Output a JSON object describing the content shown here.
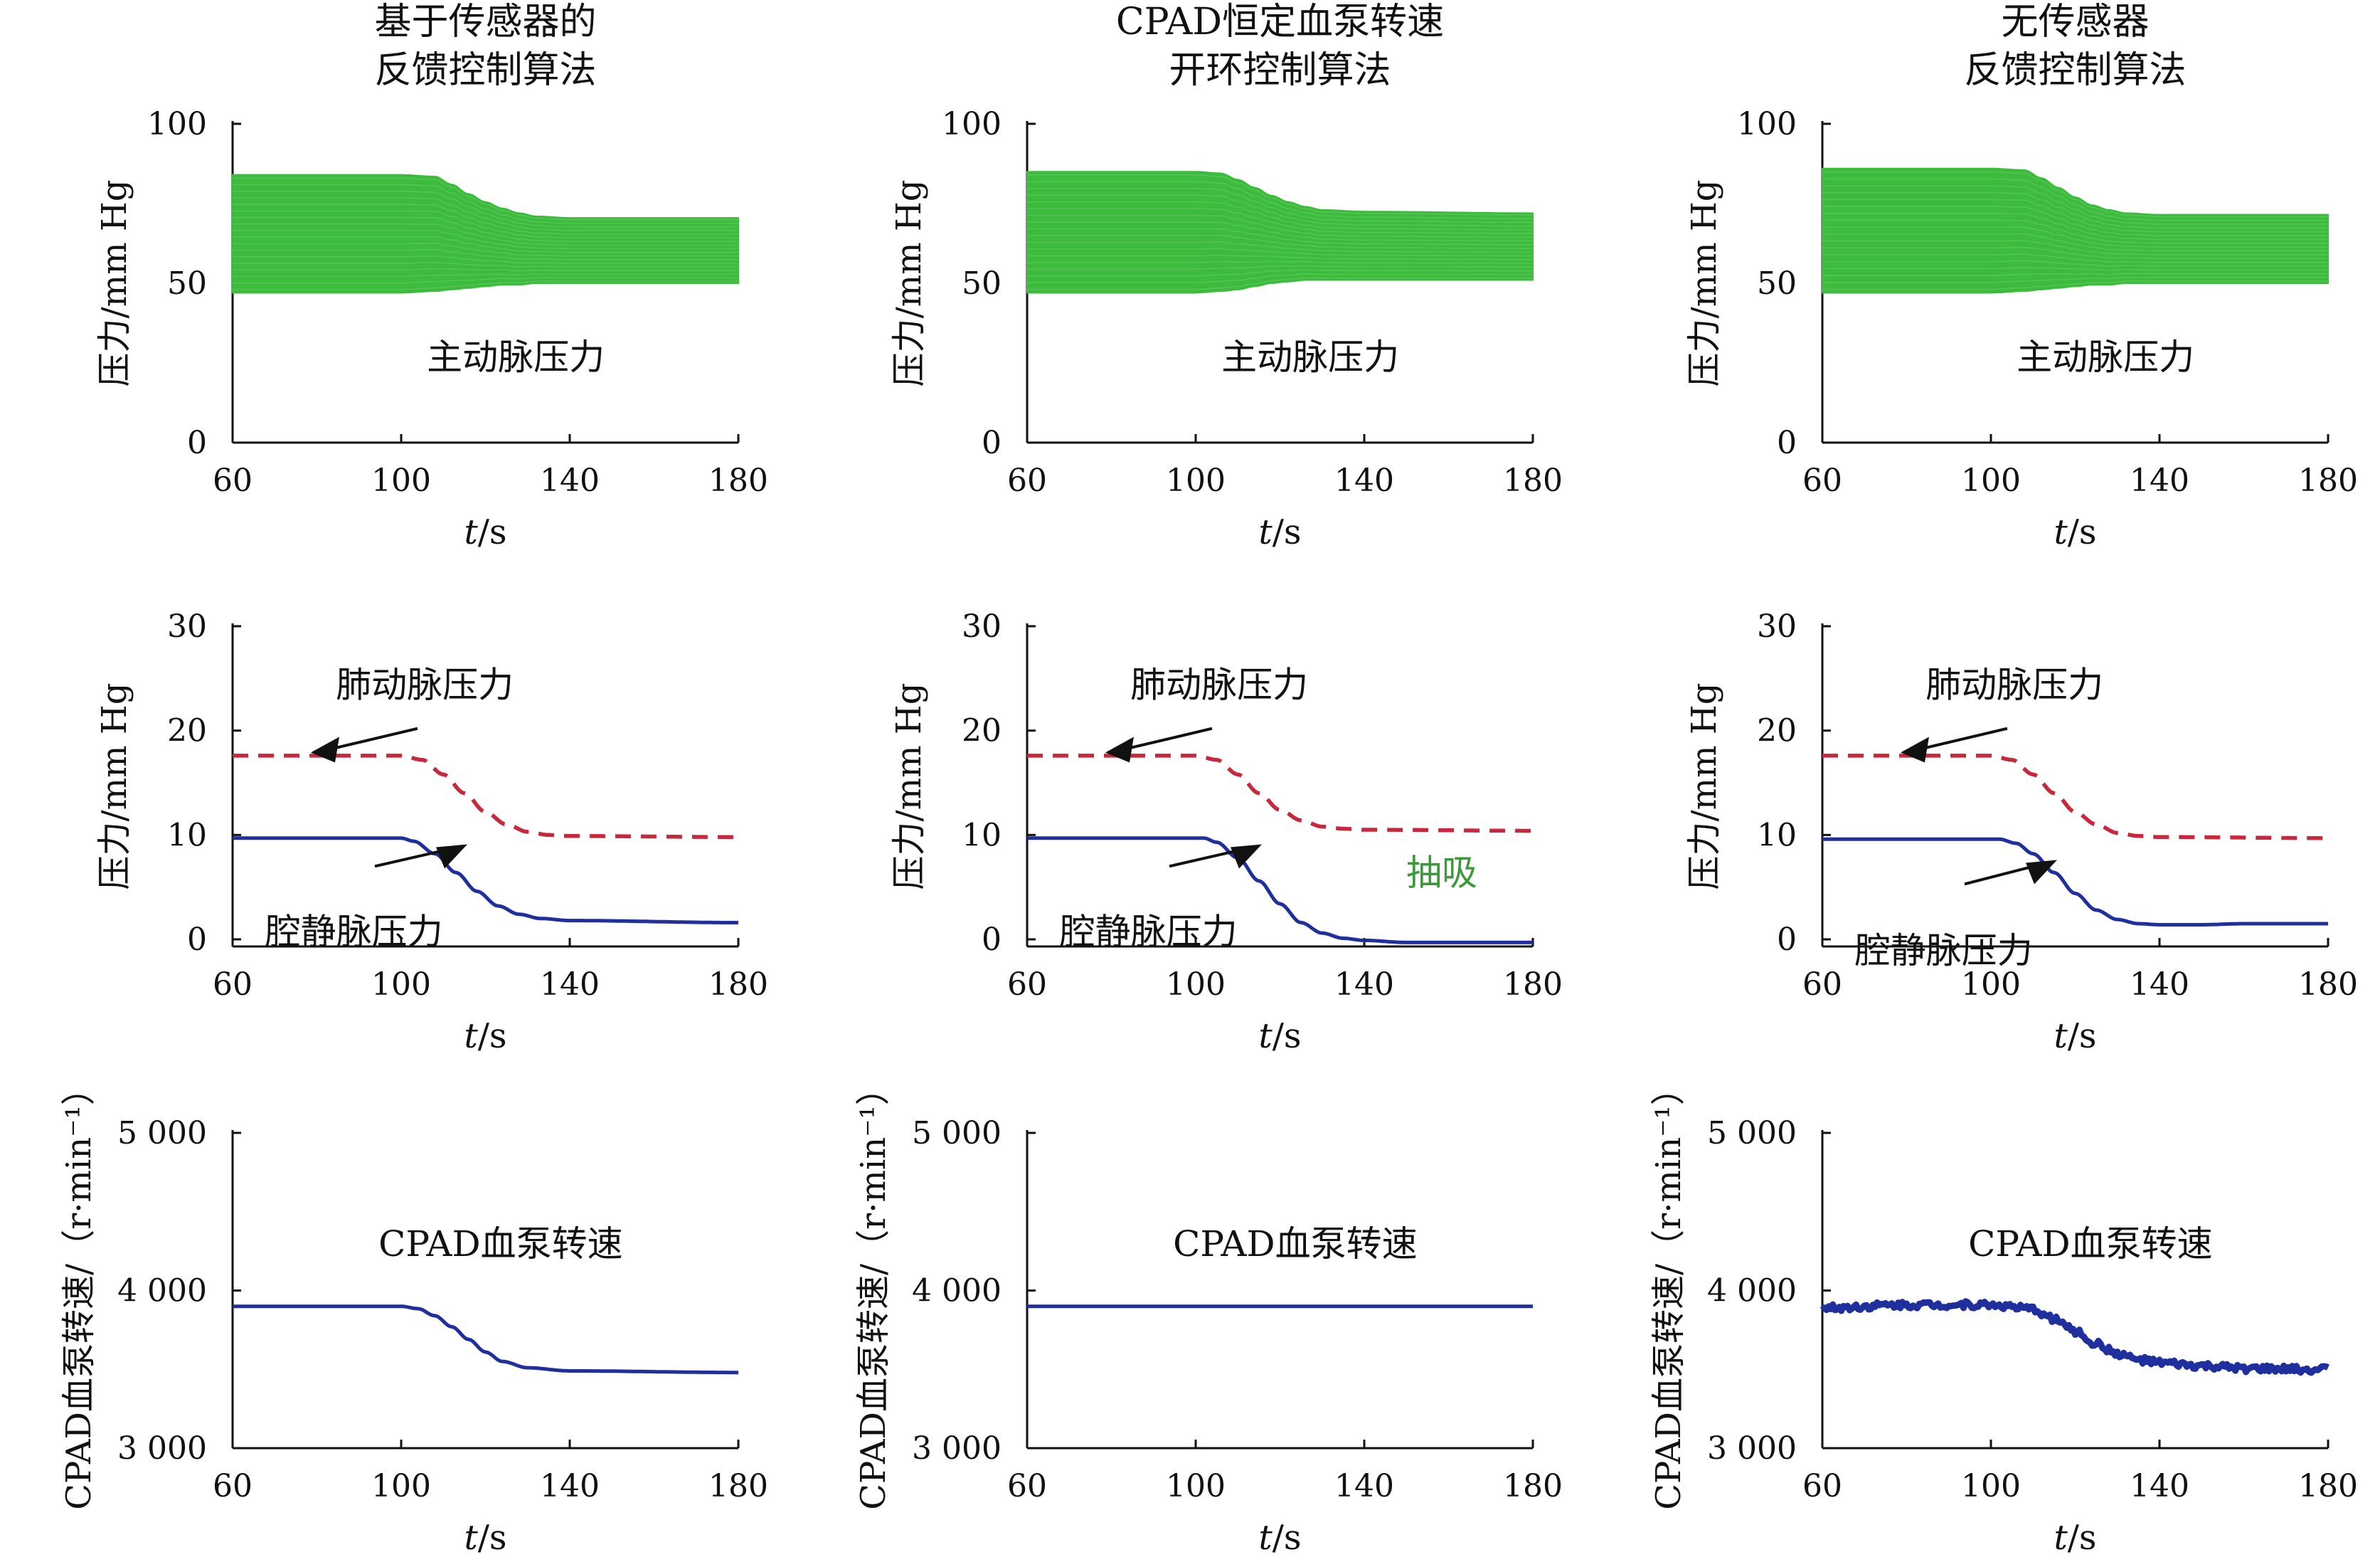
{
  "columns": [
    {
      "title": [
        "基于传感器的",
        "反馈控制算法"
      ]
    },
    {
      "title": [
        "CPAD恒定血泵转速",
        "开环控制算法"
      ]
    },
    {
      "title": [
        "无传感器",
        "反馈控制算法"
      ]
    }
  ],
  "annotations": {
    "aortic": "主动脉压力",
    "pulmonary": "肺动脉压力",
    "vena_cava": "腔静脉压力",
    "suction": "抽吸",
    "pump_speed": "CPAD血泵转速"
  },
  "colors": {
    "aortic_fill": "#3dbb3d",
    "pulmonary_line": "#c8283c",
    "vena_cava_line": "#1f2f9e",
    "speed_line": "#1f2f9e",
    "suction_text": "#3a9a3a",
    "axis": "#111111"
  },
  "chart_data": [
    {
      "type": "area",
      "row": 0,
      "col": 0,
      "xlabel": "t/s",
      "ylabel": "压力/mm Hg",
      "xlim": [
        60,
        180
      ],
      "ylim": [
        0,
        100
      ],
      "xticks": [
        60,
        100,
        140,
        180
      ],
      "xtick_labels": [
        "60",
        "100",
        "140",
        "180"
      ],
      "yticks": [
        0,
        50,
        100
      ],
      "ytick_labels": [
        "0",
        "50",
        "100"
      ],
      "series": [
        {
          "name": "主动脉压力",
          "x": [
            60,
            100,
            108,
            112,
            116,
            120,
            124,
            128,
            132,
            140,
            180
          ],
          "upper": [
            84,
            84,
            83.5,
            81,
            78,
            75.5,
            73.5,
            72,
            71,
            70.5,
            70.5
          ],
          "lower": [
            47,
            47,
            47.5,
            48,
            48.5,
            49,
            49.5,
            49.5,
            50,
            50,
            50
          ]
        }
      ]
    },
    {
      "type": "area",
      "row": 0,
      "col": 1,
      "xlabel": "t/s",
      "ylabel": "压力/mm Hg",
      "xlim": [
        60,
        180
      ],
      "ylim": [
        0,
        100
      ],
      "xticks": [
        60,
        100,
        140,
        180
      ],
      "xtick_labels": [
        "60",
        "100",
        "140",
        "180"
      ],
      "yticks": [
        0,
        50,
        100
      ],
      "ytick_labels": [
        "0",
        "50",
        "100"
      ],
      "series": [
        {
          "name": "主动脉压力",
          "x": [
            60,
            100,
            106,
            110,
            114,
            118,
            122,
            126,
            130,
            140,
            180
          ],
          "upper": [
            85,
            85,
            84.5,
            82.5,
            80,
            77.5,
            75.5,
            74,
            73,
            72.5,
            72
          ],
          "lower": [
            47,
            47,
            47.5,
            48,
            49,
            50,
            50.5,
            51,
            51,
            51,
            51
          ]
        }
      ]
    },
    {
      "type": "area",
      "row": 0,
      "col": 2,
      "xlabel": "t/s",
      "ylabel": "压力/mm Hg",
      "xlim": [
        60,
        180
      ],
      "ylim": [
        0,
        100
      ],
      "xticks": [
        60,
        100,
        140,
        180
      ],
      "xtick_labels": [
        "60",
        "100",
        "140",
        "180"
      ],
      "yticks": [
        0,
        50,
        100
      ],
      "ytick_labels": [
        "0",
        "50",
        "100"
      ],
      "series": [
        {
          "name": "主动脉压力",
          "x": [
            60,
            100,
            108,
            112,
            116,
            120,
            124,
            128,
            132,
            140,
            180
          ],
          "upper": [
            86,
            86,
            85.5,
            83,
            80,
            77,
            74.5,
            73,
            72,
            71.5,
            71.5
          ],
          "lower": [
            47,
            47,
            47.5,
            48,
            48.5,
            49,
            49.5,
            49.5,
            50,
            50,
            50
          ]
        }
      ]
    },
    {
      "type": "line",
      "row": 1,
      "col": 0,
      "xlabel": "t/s",
      "ylabel": "压力/mm Hg",
      "xlim": [
        60,
        180
      ],
      "ylim": [
        0,
        30
      ],
      "xticks": [
        60,
        100,
        140,
        180
      ],
      "xtick_labels": [
        "60",
        "100",
        "140",
        "180"
      ],
      "yticks": [
        0,
        10,
        20,
        30
      ],
      "ytick_labels": [
        "0",
        "10",
        "20",
        "30"
      ],
      "series": [
        {
          "name": "肺动脉压力",
          "style": "dashed",
          "x": [
            60,
            100,
            105,
            110,
            115,
            120,
            125,
            130,
            135,
            140,
            180
          ],
          "y": [
            17.6,
            17.6,
            17.2,
            15.8,
            14,
            12.2,
            11,
            10.3,
            10,
            9.9,
            9.8
          ]
        },
        {
          "name": "腔静脉压力",
          "style": "solid",
          "x": [
            60,
            100,
            103,
            108,
            113,
            118,
            123,
            128,
            133,
            140,
            180
          ],
          "y": [
            9.7,
            9.7,
            9.4,
            8.2,
            6.4,
            4.6,
            3.2,
            2.4,
            2,
            1.8,
            1.6
          ]
        }
      ]
    },
    {
      "type": "line",
      "row": 1,
      "col": 1,
      "xlabel": "t/s",
      "ylabel": "压力/mm Hg",
      "xlim": [
        60,
        180
      ],
      "ylim": [
        0,
        30
      ],
      "xticks": [
        60,
        100,
        140,
        180
      ],
      "xtick_labels": [
        "60",
        "100",
        "140",
        "180"
      ],
      "yticks": [
        0,
        10,
        20,
        30
      ],
      "ytick_labels": [
        "0",
        "10",
        "20",
        "30"
      ],
      "series": [
        {
          "name": "肺动脉压力",
          "style": "dashed",
          "x": [
            60,
            100,
            105,
            110,
            115,
            120,
            125,
            130,
            135,
            140,
            180
          ],
          "y": [
            17.6,
            17.6,
            17.2,
            15.8,
            14,
            12.4,
            11.4,
            10.8,
            10.6,
            10.5,
            10.4
          ]
        },
        {
          "name": "腔静脉压力",
          "style": "solid",
          "x": [
            60,
            102,
            105,
            110,
            115,
            120,
            125,
            130,
            135,
            140,
            150,
            180
          ],
          "y": [
            9.7,
            9.7,
            9.3,
            7.8,
            5.6,
            3.4,
            1.6,
            0.6,
            0.1,
            -0.1,
            -0.3,
            -0.3
          ]
        }
      ]
    },
    {
      "type": "line",
      "row": 1,
      "col": 2,
      "xlabel": "t/s",
      "ylabel": "压力/mm Hg",
      "xlim": [
        60,
        180
      ],
      "ylim": [
        0,
        30
      ],
      "xticks": [
        60,
        100,
        140,
        180
      ],
      "xtick_labels": [
        "60",
        "100",
        "140",
        "180"
      ],
      "yticks": [
        0,
        10,
        20,
        30
      ],
      "ytick_labels": [
        "0",
        "10",
        "20",
        "30"
      ],
      "series": [
        {
          "name": "肺动脉压力",
          "style": "dashed",
          "x": [
            60,
            100,
            105,
            110,
            115,
            120,
            125,
            130,
            135,
            140,
            180
          ],
          "y": [
            17.6,
            17.6,
            17.2,
            15.8,
            14,
            12.2,
            11,
            10.2,
            9.9,
            9.8,
            9.7
          ]
        },
        {
          "name": "腔静脉压力",
          "style": "solid",
          "x": [
            60,
            102,
            106,
            110,
            115,
            120,
            125,
            130,
            135,
            140,
            150,
            160,
            180
          ],
          "y": [
            9.6,
            9.6,
            9.2,
            8.2,
            6.4,
            4.4,
            2.8,
            1.9,
            1.5,
            1.4,
            1.4,
            1.5,
            1.5
          ]
        }
      ]
    },
    {
      "type": "line",
      "row": 2,
      "col": 0,
      "xlabel": "t/s",
      "ylabel": "CPAD血泵转速/（r·min⁻¹）",
      "xlim": [
        60,
        180
      ],
      "ylim": [
        3000,
        5000
      ],
      "xticks": [
        60,
        100,
        140,
        180
      ],
      "xtick_labels": [
        "60",
        "100",
        "140",
        "180"
      ],
      "yticks": [
        3000,
        4000,
        5000
      ],
      "ytick_labels": [
        "3 000",
        "4 000",
        "5 000"
      ],
      "series": [
        {
          "name": "CPAD血泵转速",
          "style": "solid",
          "x": [
            60,
            100,
            104,
            108,
            112,
            116,
            120,
            124,
            130,
            140,
            180
          ],
          "y": [
            3900,
            3900,
            3885,
            3840,
            3770,
            3690,
            3610,
            3550,
            3510,
            3490,
            3480
          ]
        }
      ]
    },
    {
      "type": "line",
      "row": 2,
      "col": 1,
      "xlabel": "t/s",
      "ylabel": "CPAD血泵转速/（r·min⁻¹）",
      "xlim": [
        60,
        180
      ],
      "ylim": [
        3000,
        5000
      ],
      "xticks": [
        60,
        100,
        140,
        180
      ],
      "xtick_labels": [
        "60",
        "100",
        "140",
        "180"
      ],
      "yticks": [
        3000,
        4000,
        5000
      ],
      "ytick_labels": [
        "3 000",
        "4 000",
        "5 000"
      ],
      "series": [
        {
          "name": "CPAD血泵转速",
          "style": "solid",
          "x": [
            60,
            180
          ],
          "y": [
            3900,
            3900
          ]
        }
      ]
    },
    {
      "type": "line",
      "row": 2,
      "col": 2,
      "xlabel": "t/s",
      "ylabel": "CPAD血泵转速/（r·min⁻¹）",
      "xlim": [
        60,
        180
      ],
      "ylim": [
        3000,
        5000
      ],
      "xticks": [
        60,
        100,
        140,
        180
      ],
      "xtick_labels": [
        "60",
        "100",
        "140",
        "180"
      ],
      "yticks": [
        3000,
        4000,
        5000
      ],
      "ytick_labels": [
        "3 000",
        "4 000",
        "5 000"
      ],
      "series": [
        {
          "name": "CPAD血泵转速",
          "style": "noisy",
          "x": [
            60,
            80,
            100,
            110,
            115,
            120,
            125,
            130,
            135,
            140,
            150,
            160,
            170,
            180
          ],
          "y": [
            3890,
            3910,
            3910,
            3880,
            3820,
            3740,
            3660,
            3600,
            3560,
            3540,
            3520,
            3505,
            3500,
            3500
          ]
        }
      ]
    }
  ]
}
